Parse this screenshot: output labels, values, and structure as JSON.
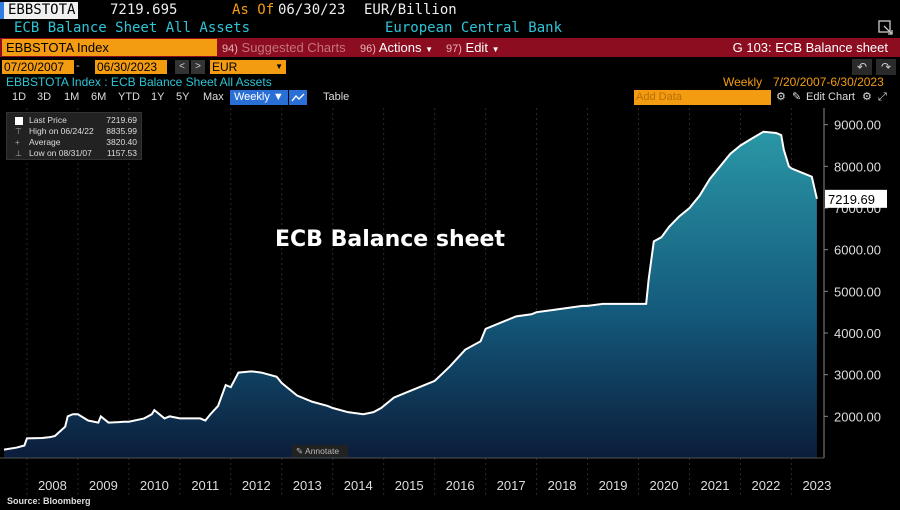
{
  "header": {
    "ticker": "EBBSTOTA",
    "price": "7219.695",
    "as_of_label": "As Of",
    "as_of_date": "06/30/23",
    "unit": "EUR/Billion",
    "description": "ECB Balance Sheet All Assets",
    "source": "European Central Bank"
  },
  "toolbar": {
    "security": "EBBSTOTA Index",
    "suggested_num": "94)",
    "suggested": "Suggested Charts",
    "actions_num": "96)",
    "actions": "Actions",
    "edit_num": "97)",
    "edit": "Edit",
    "page": "G 103: ECB Balance sheet"
  },
  "range_bar": {
    "start_date": "07/20/2007",
    "end_date": "06/30/2023",
    "currency": "EUR"
  },
  "sub_info": {
    "index_desc": "EBBSTOTA Index : ECB Balance Sheet All Assets",
    "frequency": "Weekly",
    "range": "7/20/2007-6/30/2023"
  },
  "periods": [
    "1D",
    "3D",
    "1M",
    "6M",
    "YTD",
    "1Y",
    "5Y",
    "Max"
  ],
  "period_selected": "Weekly ▼",
  "table_label": "Table",
  "add_data_placeholder": "Add Data",
  "edit_chart": "Edit Chart",
  "legend": {
    "last_price_label": "Last Price",
    "last_price": "7219.69",
    "high_label": "High on 06/24/22",
    "high": "8835.99",
    "average_label": "Average",
    "average": "3820.40",
    "low_label": "Low on 08/31/07",
    "low": "1157.53"
  },
  "annotate": "Annotate",
  "source_note": "Source: Bloomberg",
  "colors": {
    "line": "#ffffff",
    "fill_top": "#1e8a9a",
    "fill_bottom": "#0c1f3a",
    "accent": "#f39c12",
    "bar": "#8b0d1f"
  },
  "chart_data": {
    "type": "area",
    "title": "ECB Balance sheet",
    "x_tick_labels": [
      "2008",
      "2009",
      "2010",
      "2011",
      "2012",
      "2013",
      "2014",
      "2015",
      "2016",
      "2017",
      "2018",
      "2019",
      "2020",
      "2021",
      "2022",
      "2023"
    ],
    "y_tick_labels": [
      "2000.00",
      "3000.00",
      "4000.00",
      "5000.00",
      "6000.00",
      "7000.00",
      "8000.00",
      "9000.00"
    ],
    "ylim": [
      1000,
      9400
    ],
    "xlim": [
      2007.55,
      2023.6
    ],
    "last_value_label": "7219.69",
    "series": [
      {
        "x": [
          2007.55,
          2007.8,
          2007.95,
          2008.0,
          2008.3,
          2008.45,
          2008.55,
          2008.75,
          2008.8,
          2008.9,
          2009.0,
          2009.2,
          2009.4,
          2009.45,
          2009.6,
          2009.8,
          2009.9,
          2010.0,
          2010.3,
          2010.45,
          2010.5,
          2010.7,
          2010.8,
          2011.0,
          2011.2,
          2011.4,
          2011.5,
          2011.6,
          2011.75,
          2011.9,
          2012.0,
          2012.15,
          2012.4,
          2012.6,
          2012.9,
          2013.0,
          2013.3,
          2013.6,
          2013.9,
          2014.0,
          2014.3,
          2014.6,
          2014.8,
          2014.95,
          2015.2,
          2015.5,
          2015.8,
          2016.0,
          2016.3,
          2016.6,
          2016.9,
          2017.0,
          2017.3,
          2017.6,
          2017.9,
          2018.0,
          2018.3,
          2018.6,
          2018.9,
          2019.0,
          2019.3,
          2019.6,
          2019.9,
          2020.0,
          2020.15,
          2020.2,
          2020.3,
          2020.45,
          2020.6,
          2020.8,
          2021.0,
          2021.2,
          2021.4,
          2021.6,
          2021.8,
          2022.0,
          2022.2,
          2022.45,
          2022.7,
          2022.8,
          2022.85,
          2022.95,
          2023.0,
          2023.2,
          2023.4,
          2023.5
        ],
        "y": [
          1200,
          1250,
          1300,
          1470,
          1480,
          1500,
          1530,
          1750,
          2000,
          2050,
          2050,
          1900,
          1850,
          2000,
          1850,
          1860,
          1870,
          1870,
          1950,
          2050,
          2150,
          1950,
          2000,
          1950,
          1950,
          1950,
          1900,
          2050,
          2250,
          2750,
          2700,
          3050,
          3080,
          3050,
          2950,
          2800,
          2500,
          2350,
          2250,
          2200,
          2100,
          2050,
          2100,
          2200,
          2450,
          2600,
          2750,
          2850,
          3200,
          3600,
          3800,
          4100,
          4250,
          4400,
          4450,
          4500,
          4550,
          4600,
          4650,
          4650,
          4700,
          4700,
          4700,
          4700,
          4700,
          5300,
          6200,
          6300,
          6550,
          6800,
          7000,
          7300,
          7700,
          8000,
          8300,
          8500,
          8650,
          8830,
          8800,
          8750,
          8400,
          8000,
          7950,
          7850,
          7750,
          7220
        ]
      }
    ]
  }
}
